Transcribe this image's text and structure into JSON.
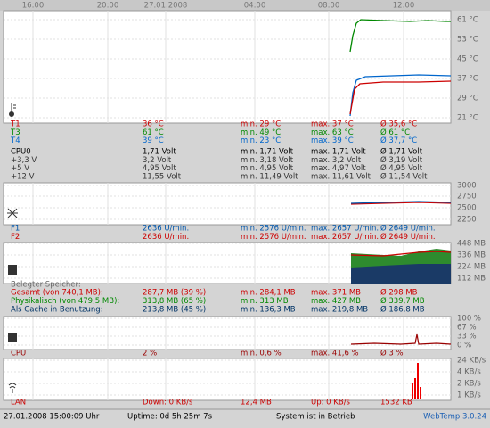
{
  "time_axis": [
    "16:00",
    "20:00",
    "27.01.2008",
    "04:00",
    "08:00",
    "12:00"
  ],
  "temperature": {
    "scale": [
      "61 °C",
      "53 °C",
      "45 °C",
      "37 °C",
      "29 °C",
      "21 °C"
    ],
    "rows": [
      {
        "color": "#cc0000",
        "cells": [
          "T1",
          "36 °C",
          "min. 29 °C",
          "max. 37 °C",
          "Ø 35,6 °C"
        ]
      },
      {
        "color": "#008800",
        "cells": [
          "T3",
          "61 °C",
          "min. 49 °C",
          "max. 63 °C",
          "Ø 61 °C"
        ]
      },
      {
        "color": "#0066cc",
        "cells": [
          "T4",
          "39 °C",
          "min. 23 °C",
          "max. 39 °C",
          "Ø 37,7 °C"
        ]
      }
    ]
  },
  "voltage": {
    "rows": [
      {
        "color": "#000000",
        "cells": [
          "CPU0",
          "1,71 Volt",
          "min. 1,71 Volt",
          "max. 1,71 Volt",
          "Ø 1,71 Volt"
        ]
      },
      {
        "color": "#333333",
        "cells": [
          "+3,3 V",
          "3,2 Volt",
          "min. 3,18 Volt",
          "max. 3,2 Volt",
          "Ø 3,19 Volt"
        ]
      },
      {
        "color": "#333333",
        "cells": [
          "+5 V",
          "4,95 Volt",
          "min. 4,95 Volt",
          "max. 4,97 Volt",
          "Ø 4,95 Volt"
        ]
      },
      {
        "color": "#333333",
        "cells": [
          "+12 V",
          "11,55 Volt",
          "min. 11,49 Volt",
          "max. 11,61 Volt",
          "Ø 11,54 Volt"
        ]
      }
    ]
  },
  "fans": {
    "scale": [
      "3000",
      "2750",
      "2500",
      "2250"
    ],
    "rows": [
      {
        "color": "#0055aa",
        "cells": [
          "F1",
          "2636 U/min.",
          "min. 2576 U/min.",
          "max. 2657 U/min.",
          "Ø 2649 U/min."
        ]
      },
      {
        "color": "#cc0000",
        "cells": [
          "F2",
          "2636 U/min.",
          "min. 2576 U/min.",
          "max. 2657 U/min.",
          "Ø 2649 U/min."
        ]
      }
    ]
  },
  "memory": {
    "scale": [
      "448 MB",
      "336 MB",
      "224 MB",
      "112 MB"
    ],
    "heading": "Belegter Speicher:",
    "rows": [
      {
        "color": "#cc0000",
        "cells": [
          "Gesamt (von 740,1 MB):",
          "287,7 MB (39 %)",
          "min. 284,1 MB",
          "max. 371 MB",
          "Ø 298 MB"
        ]
      },
      {
        "color": "#008800",
        "cells": [
          "Physikalisch (von 479,5 MB):",
          "313,8 MB (65 %)",
          "min. 313 MB",
          "max. 427 MB",
          "Ø 339,7 MB"
        ]
      },
      {
        "color": "#003366",
        "cells": [
          "Als Cache in Benutzung:",
          "213,8 MB (45 %)",
          "min. 136,3 MB",
          "max. 219,8 MB",
          "Ø 186,8 MB"
        ]
      }
    ]
  },
  "cpu": {
    "scale": [
      "100 %",
      "67 %",
      "33 %",
      "0 %"
    ],
    "rows": [
      {
        "color": "#990000",
        "cells": [
          "CPU",
          "2 %",
          "min. 0,6 %",
          "max. 41,6 %",
          "Ø 3 %"
        ]
      }
    ]
  },
  "lan": {
    "scale": [
      "24 KB/s",
      "4 KB/s",
      "2 KB/s",
      "1 KB/s"
    ],
    "rows": [
      {
        "color": "#cc0000",
        "cells": [
          "LAN",
          "Down: 0 KB/s",
          "12,4 MB",
          "Up: 0 KB/s",
          "1532 KB"
        ]
      }
    ]
  },
  "footer": {
    "date": "27.01.2008 15:00:09 Uhr",
    "uptime": "Uptime: 0d 5h 25m 7s",
    "status": "System ist in Betrieb",
    "version": "WebTemp 3.0.24"
  }
}
